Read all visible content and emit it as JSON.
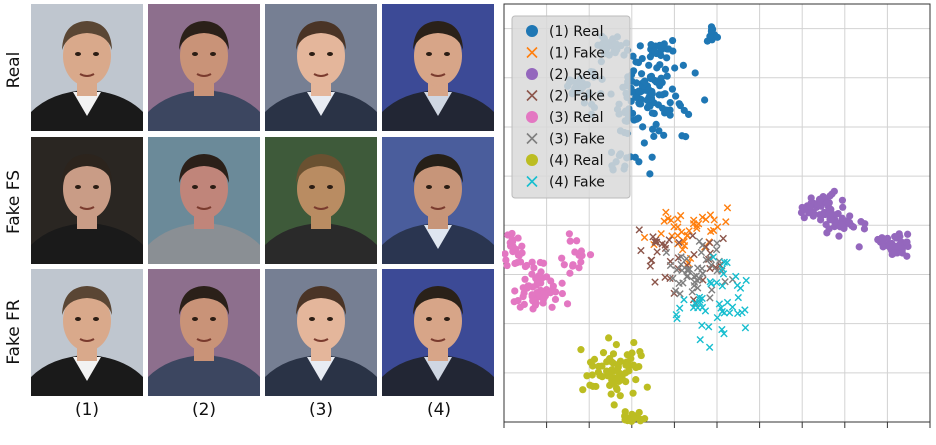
{
  "figure": {
    "row_labels": [
      "Real",
      "Fake FS",
      "Fake FR"
    ],
    "col_labels": [
      "(1)",
      "(2)",
      "(3)",
      "(4)"
    ],
    "faces": [
      [
        {
          "bg": "#bfc6cf",
          "skin": "#d9a98b",
          "hair": "#5a4634",
          "shirt": "#1a1a1a",
          "collar": "#f2f2f2"
        },
        {
          "bg": "#8d6f8d",
          "skin": "#c99378",
          "hair": "#2b2019",
          "shirt": "#3c4660",
          "collar": "#3c4660"
        },
        {
          "bg": "#767f93",
          "skin": "#e4b69b",
          "hair": "#4a3426",
          "shirt": "#2a3346",
          "collar": "#e8ecf3"
        },
        {
          "bg": "#3c4a96",
          "skin": "#d7a588",
          "hair": "#2a2119",
          "shirt": "#222634",
          "collar": "#cfd6e2"
        }
      ],
      [
        {
          "bg": "#2a2622",
          "skin": "#c99c86",
          "hair": "#2c241d",
          "shirt": "#1a1a1a",
          "collar": "#1a1a1a"
        },
        {
          "bg": "#6b8a99",
          "skin": "#c0857a",
          "hair": "#2b2019",
          "shirt": "#8a8f94",
          "collar": "#8a8f94"
        },
        {
          "bg": "#3e5a3a",
          "skin": "#b98c62",
          "hair": "#6a5131",
          "shirt": "#2a2a2a",
          "collar": "#2a2a2a"
        },
        {
          "bg": "#4a5d9c",
          "skin": "#c79579",
          "hair": "#262018",
          "shirt": "#2a3550",
          "collar": "#dfe6f0"
        }
      ],
      [
        {
          "bg": "#bfc6cf",
          "skin": "#d9a98b",
          "hair": "#5a4634",
          "shirt": "#1a1a1a",
          "collar": "#f2f2f2"
        },
        {
          "bg": "#8d6f8d",
          "skin": "#c99378",
          "hair": "#2b2019",
          "shirt": "#3c4660",
          "collar": "#3c4660"
        },
        {
          "bg": "#767f93",
          "skin": "#e4b69b",
          "hair": "#4a3426",
          "shirt": "#2a3346",
          "collar": "#e8ecf3"
        },
        {
          "bg": "#3c4a96",
          "skin": "#d7a588",
          "hair": "#2a2119",
          "shirt": "#222634",
          "collar": "#cfd6e2"
        }
      ]
    ]
  },
  "chart_data": {
    "type": "scatter",
    "title": "",
    "xlabel": "",
    "ylabel": "",
    "xlim": [
      -1,
      9
    ],
    "ylim": [
      0,
      8.5
    ],
    "grid": true,
    "legend_position": "top-left",
    "series": [
      {
        "name": "(1) Real",
        "marker": "circle",
        "color": "#1f77b4",
        "clusters": [
          {
            "cx": 2.3,
            "cy": 6.6,
            "sx": 0.75,
            "sy": 0.55,
            "n": 120
          },
          {
            "cx": 1.5,
            "cy": 7.7,
            "sx": 0.25,
            "sy": 0.12,
            "n": 25
          },
          {
            "cx": 2.6,
            "cy": 7.6,
            "sx": 0.25,
            "sy": 0.12,
            "n": 20
          },
          {
            "cx": 3.9,
            "cy": 7.9,
            "sx": 0.1,
            "sy": 0.12,
            "n": 12
          },
          {
            "cx": 0.8,
            "cy": 6.8,
            "sx": 0.25,
            "sy": 0.3,
            "n": 25
          },
          {
            "cx": 2.0,
            "cy": 5.3,
            "sx": 0.6,
            "sy": 0.15,
            "n": 15
          }
        ]
      },
      {
        "name": "(1) Fake",
        "marker": "x",
        "color": "#ff7f0e",
        "clusters": [
          {
            "cx": 3.3,
            "cy": 3.9,
            "sx": 0.55,
            "sy": 0.45,
            "n": 40
          }
        ]
      },
      {
        "name": "(2) Real",
        "marker": "circle",
        "color": "#9467bd",
        "clusters": [
          {
            "cx": 6.5,
            "cy": 4.3,
            "sx": 0.35,
            "sy": 0.25,
            "n": 55
          },
          {
            "cx": 8.2,
            "cy": 3.6,
            "sx": 0.25,
            "sy": 0.15,
            "n": 45
          },
          {
            "cx": 7.0,
            "cy": 4.0,
            "sx": 0.4,
            "sy": 0.25,
            "n": 20
          }
        ]
      },
      {
        "name": "(2) Fake",
        "marker": "x",
        "color": "#8c564b",
        "clusters": [
          {
            "cx": 3.0,
            "cy": 3.2,
            "sx": 0.8,
            "sy": 0.55,
            "n": 35
          }
        ]
      },
      {
        "name": "(3) Real",
        "marker": "circle",
        "color": "#e377c2",
        "clusters": [
          {
            "cx": -0.3,
            "cy": 2.7,
            "sx": 0.45,
            "sy": 0.35,
            "n": 60
          },
          {
            "cx": -0.8,
            "cy": 3.5,
            "sx": 0.25,
            "sy": 0.3,
            "n": 25
          },
          {
            "cx": 0.7,
            "cy": 3.4,
            "sx": 0.25,
            "sy": 0.3,
            "n": 15
          }
        ]
      },
      {
        "name": "(3) Fake",
        "marker": "x",
        "color": "#7f7f7f",
        "clusters": [
          {
            "cx": 3.6,
            "cy": 3.0,
            "sx": 0.6,
            "sy": 0.45,
            "n": 45
          }
        ]
      },
      {
        "name": "(4) Real",
        "marker": "circle",
        "color": "#bcbd22",
        "clusters": [
          {
            "cx": 1.6,
            "cy": 1.0,
            "sx": 0.45,
            "sy": 0.4,
            "n": 70
          },
          {
            "cx": 2.1,
            "cy": 0.1,
            "sx": 0.2,
            "sy": 0.1,
            "n": 20
          }
        ]
      },
      {
        "name": "(4) Fake",
        "marker": "x",
        "color": "#17becf",
        "clusters": [
          {
            "cx": 3.9,
            "cy": 2.5,
            "sx": 0.55,
            "sy": 0.55,
            "n": 45
          }
        ]
      }
    ]
  }
}
